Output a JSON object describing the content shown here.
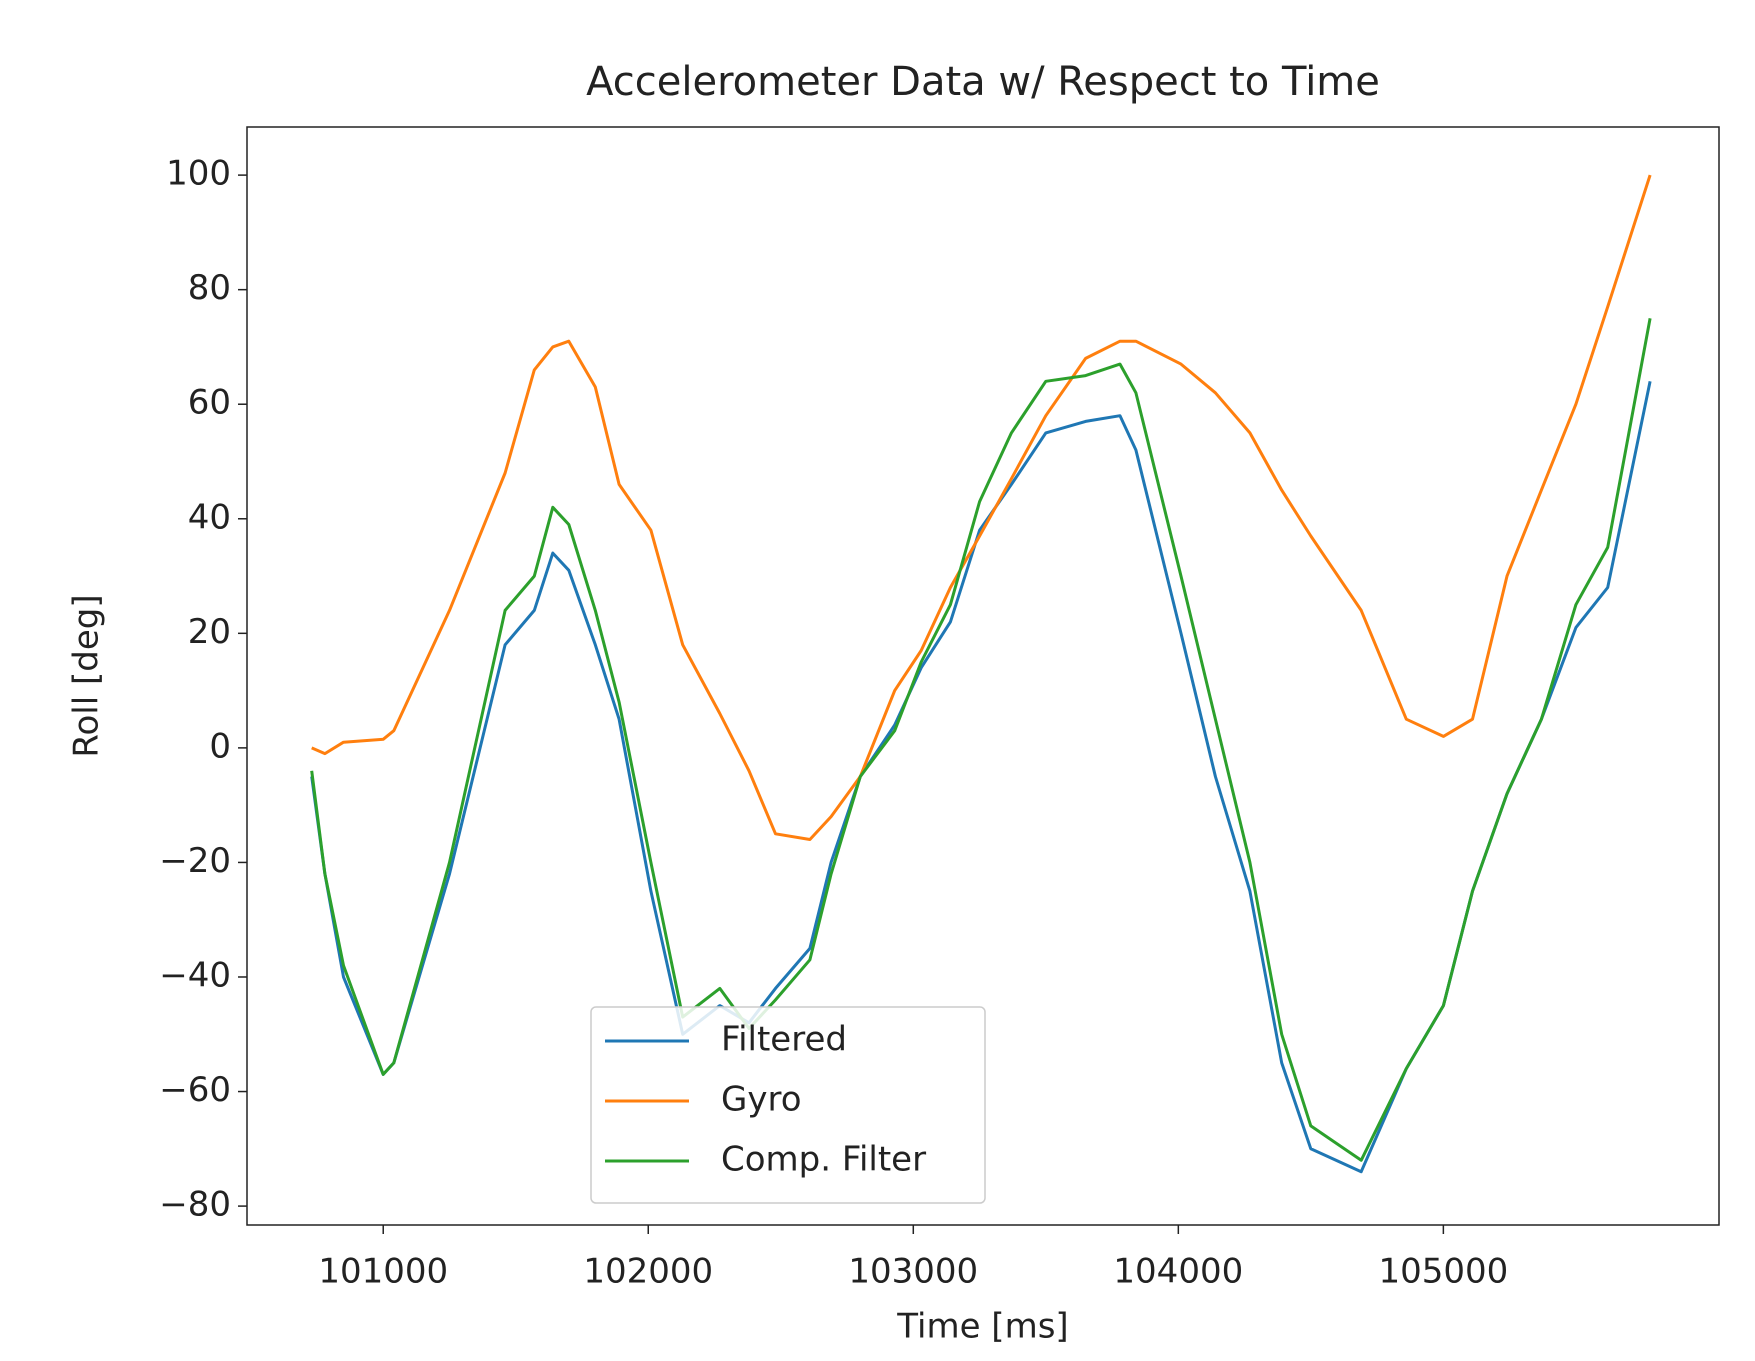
{
  "chart_data": {
    "type": "line",
    "title": "Accelerometer Data w/ Respect to Time",
    "x_label": "Time [ms]",
    "y_label": "Roll [deg]",
    "x": [
      100730,
      100780,
      100850,
      101000,
      101040,
      101250,
      101460,
      101570,
      101640,
      101700,
      101800,
      101890,
      102010,
      102130,
      102270,
      102380,
      102480,
      102610,
      102690,
      102800,
      102930,
      103030,
      103140,
      103250,
      103370,
      103500,
      103650,
      103780,
      103840,
      104010,
      104140,
      104270,
      104390,
      104500,
      104690,
      104860,
      105000,
      105110,
      105240,
      105370,
      105500,
      105620,
      105780
    ],
    "series": [
      {
        "name": "Filtered",
        "color": "#1f77b4",
        "values": [
          -5,
          -22,
          -40,
          -57,
          -55,
          -22,
          18,
          24,
          34,
          31,
          18,
          5,
          -25,
          -50,
          -45,
          -48,
          -42,
          -35,
          -20,
          -5,
          4,
          14,
          22,
          38,
          46,
          55,
          57,
          58,
          52,
          20,
          -5,
          -25,
          -55,
          -70,
          -74,
          -56,
          -45,
          -25,
          -8,
          5,
          21,
          28,
          64
        ]
      },
      {
        "name": "Gyro",
        "color": "#ff7f0e",
        "values": [
          0,
          -1,
          1,
          1.5,
          3,
          24,
          48,
          66,
          70,
          71,
          63,
          46,
          38,
          18,
          6,
          -4,
          -15,
          -16,
          -12,
          -5,
          10,
          17,
          28,
          37,
          47,
          58,
          68,
          71,
          71,
          67,
          62,
          55,
          45,
          37,
          24,
          5,
          2,
          5,
          30,
          45,
          60,
          77,
          100
        ]
      },
      {
        "name": "Comp. Filter",
        "color": "#2ca02c",
        "values": [
          -4,
          -22,
          -38,
          -57,
          -55,
          -20,
          24,
          30,
          42,
          39,
          24,
          8,
          -20,
          -47,
          -42,
          -49,
          -44,
          -37,
          -22,
          -5,
          3,
          15,
          25,
          43,
          55,
          64,
          65,
          67,
          62,
          30,
          5,
          -20,
          -50,
          -66,
          -72,
          -56,
          -45,
          -25,
          -8,
          5,
          25,
          35,
          75
        ]
      }
    ],
    "xlim": [
      100486,
      106040
    ],
    "ylim": [
      -83.3,
      108.4
    ],
    "xticks": [
      101000,
      102000,
      103000,
      104000,
      105000
    ],
    "yticks": [
      {
        "value": -80,
        "label": "−80"
      },
      {
        "value": -60,
        "label": "−60"
      },
      {
        "value": -40,
        "label": "−40"
      },
      {
        "value": -20,
        "label": "−20"
      },
      0,
      20,
      40,
      60,
      80,
      100
    ],
    "legend": "lower center"
  }
}
